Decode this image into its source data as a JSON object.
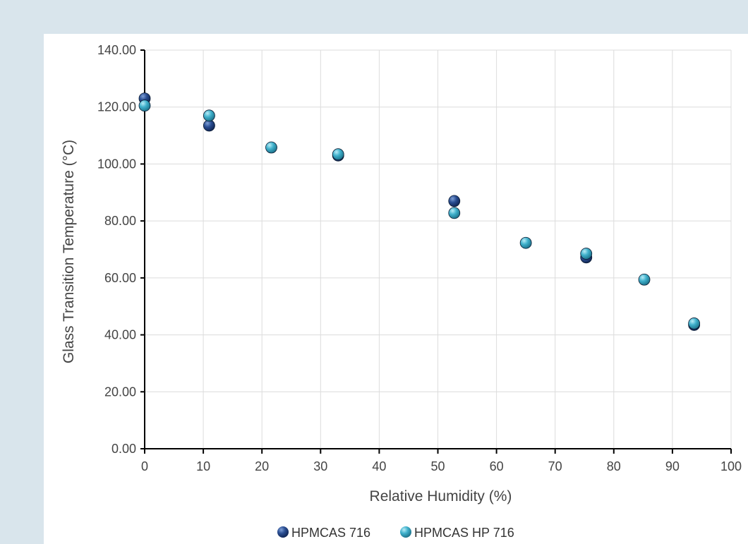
{
  "chart_data": {
    "type": "scatter",
    "title": "",
    "xlabel": "Relative Humidity (%)",
    "ylabel": "Glass Transition Temperature (°C)",
    "xlim": [
      0,
      100
    ],
    "ylim": [
      0,
      140
    ],
    "x_ticks": [
      0,
      10,
      20,
      30,
      40,
      50,
      60,
      70,
      80,
      90,
      100
    ],
    "y_ticks": [
      0,
      20,
      40,
      60,
      80,
      100,
      120,
      140
    ],
    "x_tick_labels": [
      "0",
      "10",
      "20",
      "30",
      "40",
      "50",
      "60",
      "70",
      "80",
      "90",
      "100"
    ],
    "y_tick_labels": [
      "0.00",
      "20.00",
      "40.00",
      "60.00",
      "80.00",
      "100.00",
      "120.00",
      "140.00"
    ],
    "grid": true,
    "legend_position": "bottom",
    "series": [
      {
        "name": "HPMCAS 716",
        "color": "#1f3f7a",
        "points": [
          [
            0,
            123
          ],
          [
            11,
            113.5
          ],
          [
            33,
            103
          ],
          [
            52.8,
            87
          ],
          [
            75.3,
            67.2
          ],
          [
            93.7,
            43.5
          ]
        ]
      },
      {
        "name": "HPMCAS HP 716",
        "color": "#3aa6c2",
        "points": [
          [
            0,
            120.5
          ],
          [
            11,
            117
          ],
          [
            21.6,
            105.8
          ],
          [
            33,
            103.4
          ],
          [
            52.8,
            82.8
          ],
          [
            65,
            72.3
          ],
          [
            75.3,
            68.5
          ],
          [
            85.2,
            59.4
          ],
          [
            93.7,
            44
          ]
        ]
      }
    ]
  }
}
